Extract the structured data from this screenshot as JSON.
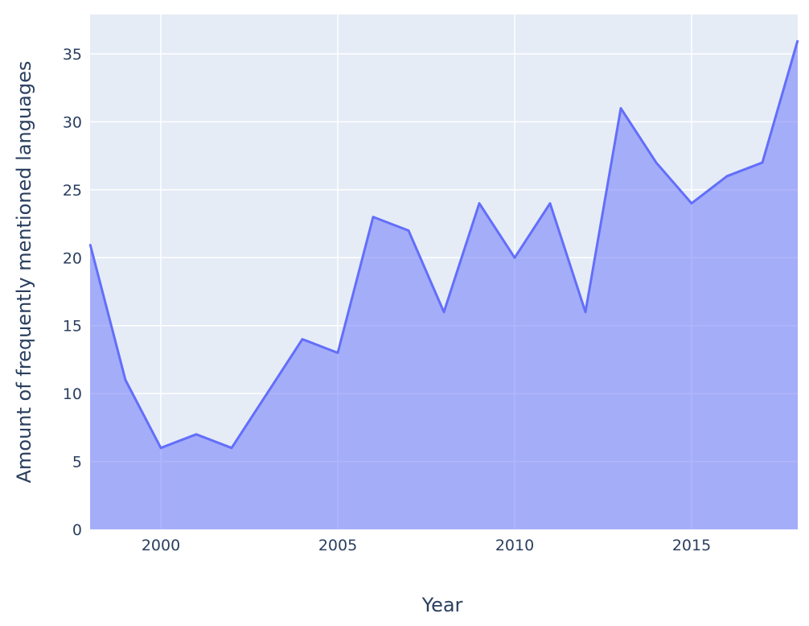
{
  "chart_data": {
    "type": "area",
    "x_label": "Year",
    "y_label": "Amount of frequently mentioned languages",
    "x": [
      1998,
      1999,
      2000,
      2001,
      2002,
      2003,
      2004,
      2005,
      2006,
      2007,
      2008,
      2009,
      2010,
      2011,
      2012,
      2013,
      2014,
      2015,
      2016,
      2017,
      2018
    ],
    "values": [
      21,
      11,
      6,
      7,
      6,
      10,
      14,
      13,
      23,
      22,
      16,
      24,
      20,
      24,
      16,
      31,
      27,
      24,
      26,
      27,
      36
    ],
    "color": "#636efa",
    "xlim": [
      1998,
      2018
    ],
    "xticks": [
      2000,
      2005,
      2010,
      2015
    ],
    "ylim": [
      0,
      37.9
    ],
    "yticks": [
      0,
      5,
      10,
      15,
      20,
      25,
      30,
      35
    ],
    "grid": true
  }
}
